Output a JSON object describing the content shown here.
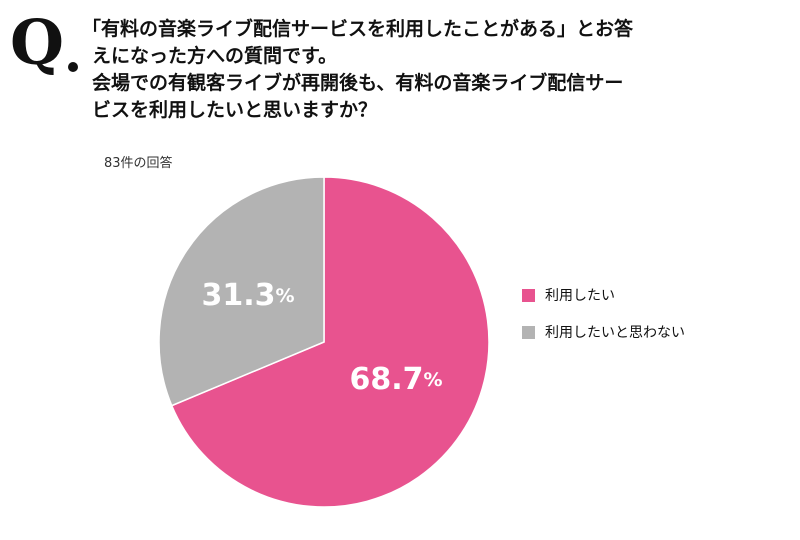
{
  "question_mark": "Q",
  "title_lines": [
    "「有料の音楽ライブ配信サービスを利用したことがある」とお答",
    "えになった方への質問です。",
    "会場での有観客ライブが再開後も、有料の音楽ライブ配信サー",
    "ビスを利用したいと思いますか？"
  ],
  "response_count": "83件の回答",
  "chart_data": {
    "type": "pie",
    "title": "会場での有観客ライブが再開後も、有料の音楽ライブ配信サービスを利用したいと思いますか？",
    "categories": [
      "利用したい",
      "利用したいと思わない"
    ],
    "values": [
      68.7,
      31.3
    ],
    "labels": [
      "68.7%",
      "31.3%"
    ],
    "colors": [
      "#E8538F",
      "#B3B3B3"
    ],
    "legend_position": "right"
  }
}
